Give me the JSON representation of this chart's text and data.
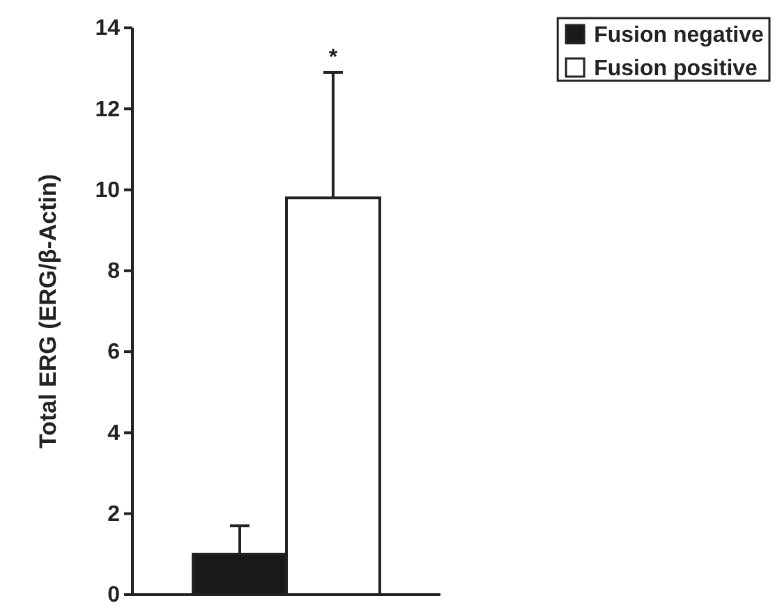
{
  "chart_data": {
    "type": "bar",
    "ylabel": "Total ERG (ERG/β-Actin)",
    "categories": [
      null
    ],
    "series": [
      {
        "name": "Fusion negative",
        "color": "#1a1a1a",
        "values": [
          1.0
        ],
        "errors": [
          0.7
        ]
      },
      {
        "name": "Fusion positive",
        "color": "#ffffff",
        "values": [
          9.8
        ],
        "errors": [
          3.1
        ]
      }
    ],
    "ylim": [
      0,
      14
    ],
    "yticks": [
      0,
      2,
      4,
      6,
      8,
      10,
      12,
      14
    ],
    "legend": "top right",
    "grid": false,
    "annotations": [
      {
        "text": "*",
        "y": 12.9
      }
    ]
  }
}
